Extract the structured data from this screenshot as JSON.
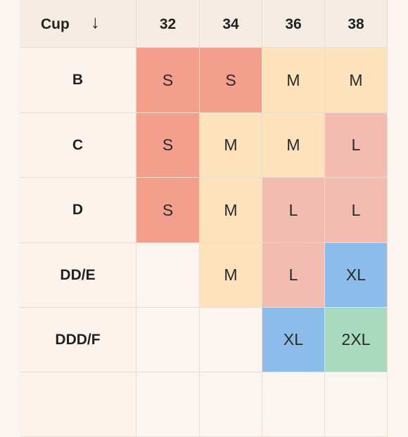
{
  "header": {
    "cup_label": "Cup",
    "sort_icon": "↓",
    "bands": [
      "32",
      "34",
      "36",
      "38"
    ]
  },
  "rows": [
    {
      "cup": "B",
      "sizes": [
        "S",
        "S",
        "M",
        "M"
      ]
    },
    {
      "cup": "C",
      "sizes": [
        "S",
        "M",
        "M",
        "L"
      ]
    },
    {
      "cup": "D",
      "sizes": [
        "S",
        "M",
        "L",
        "L"
      ]
    },
    {
      "cup": "DD/E",
      "sizes": [
        "",
        "M",
        "L",
        "XL"
      ]
    },
    {
      "cup": "DDD/F",
      "sizes": [
        "",
        "",
        "XL",
        "2XL"
      ]
    }
  ],
  "colors": {
    "S": "#f49f8c",
    "M": "#fde2bb",
    "L": "#f3bcb1",
    "XL": "#8cbcea",
    "2XL": "#a9d9bf"
  }
}
